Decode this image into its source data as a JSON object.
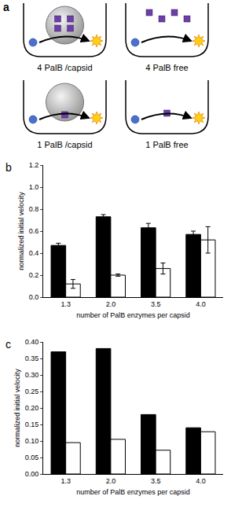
{
  "diagram": {
    "label": "a",
    "wells": [
      {
        "text": "4 PalB /capsid",
        "enzymes": 4,
        "capsid": true
      },
      {
        "text": "4 PalB free",
        "enzymes": 4,
        "capsid": false
      },
      {
        "text": "1 PalB /capsid",
        "enzymes": 1,
        "capsid": true
      },
      {
        "text": "1 PalB free",
        "enzymes": 1,
        "capsid": false
      }
    ]
  },
  "chart_data": [
    {
      "type": "bar",
      "annotations": [
        {
          "text": "b"
        }
      ],
      "x_label": "number of PalB enzymes per capsid",
      "y_label": "normalized initial velocity",
      "categories": [
        "1.3",
        "2.0",
        "3.5",
        "4.0"
      ],
      "series": [
        {
          "color": "#000000",
          "values": [
            0.47,
            0.73,
            0.63,
            0.57
          ],
          "errors": [
            0.02,
            0.02,
            0.04,
            0.03
          ]
        },
        {
          "color": "#ffffff",
          "values": [
            0.12,
            0.2,
            0.26,
            0.52
          ],
          "errors": [
            0.04,
            0.01,
            0.05,
            0.12
          ]
        }
      ],
      "ylim": [
        0,
        1.2
      ],
      "yticks": [
        {
          "value": 0,
          "label": "0.0"
        },
        {
          "value": 0.2,
          "label": "0.2"
        },
        {
          "value": 0.4,
          "label": "0.4"
        },
        {
          "value": 0.6,
          "label": "0.6"
        },
        {
          "value": 0.8,
          "label": "0.8"
        },
        {
          "value": 1,
          "label": "1.0"
        },
        {
          "value": 1.2,
          "label": "1.2"
        }
      ],
      "grid": false
    },
    {
      "type": "bar",
      "annotations": [
        {
          "text": "c"
        }
      ],
      "x_label": "number of PalB enzymes per capsid",
      "y_label": "normalized initial velocity",
      "categories": [
        "1.3",
        "2.0",
        "3.5",
        "4.0"
      ],
      "series": [
        {
          "color": "#000000",
          "values": [
            0.37,
            0.38,
            0.18,
            0.14
          ]
        },
        {
          "color": "#ffffff",
          "values": [
            0.095,
            0.105,
            0.072,
            0.128
          ]
        }
      ],
      "ylim": [
        0,
        0.4
      ],
      "yticks": [
        {
          "value": 0,
          "label": "0.00"
        },
        {
          "value": 0.05,
          "label": "0.05"
        },
        {
          "value": 0.1,
          "label": "0.10"
        },
        {
          "value": 0.15,
          "label": "0.15"
        },
        {
          "value": 0.2,
          "label": "0.20"
        },
        {
          "value": 0.25,
          "label": "0.25"
        },
        {
          "value": 0.3,
          "label": "0.30"
        },
        {
          "value": 0.35,
          "label": "0.35"
        },
        {
          "value": 0.4,
          "label": "0.40"
        }
      ],
      "grid": false
    }
  ]
}
